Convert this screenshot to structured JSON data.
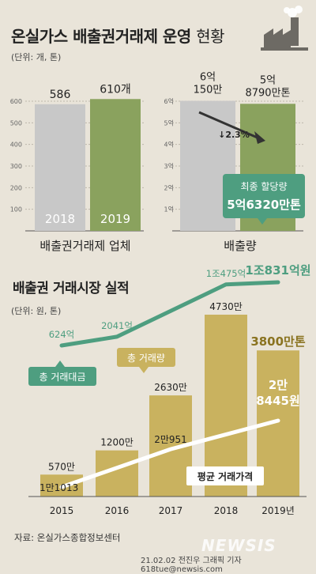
{
  "header": {
    "title_bold": "온실가스 배출권거래제 운영",
    "title_light": "현황",
    "unit1": "(단위: 개, 톤)",
    "section2_title": "배출권 거래시장 실적",
    "unit2": "(단위: 원, 톤)",
    "source": "자료: 온실가스종합정보센터",
    "credit": "21.02.02 전진우 그래픽 기자 618tue@newsis.com",
    "watermark": "NEWSIS"
  },
  "colors": {
    "gray_bar": "#c8c8c8",
    "olive_bar": "#8aa25e",
    "gold_bar": "#c9b25f",
    "teal": "#4e9e80",
    "white_line": "#ffffff",
    "red_arrow": "#d43b2a",
    "dark_arrow": "#333333"
  },
  "chart_data": [
    {
      "type": "bar",
      "categories": [
        "2018",
        "2019"
      ],
      "values": [
        586,
        610
      ],
      "value_labels": [
        "586",
        "610개"
      ],
      "xlabel": "배출권거래제 업체",
      "ylim": [
        0,
        600
      ],
      "yticks": [
        100,
        200,
        300,
        400,
        500,
        600
      ]
    },
    {
      "type": "bar",
      "categories": [
        "2018",
        "2019"
      ],
      "values": [
        6.015,
        5.879
      ],
      "value_labels": [
        "6억\n150만",
        "5억\n8790만톤"
      ],
      "xlabel": "배출량",
      "ylim": [
        0,
        6
      ],
      "yticks": [
        1,
        2,
        3,
        4,
        5,
        6
      ],
      "ytick_labels": [
        "1억",
        "2억",
        "3억",
        "4억",
        "5억",
        "6억"
      ],
      "change_label": "↓2.3%",
      "callout": {
        "title": "최종 할당량",
        "value": "5억6320만톤"
      }
    },
    {
      "type": "bar",
      "categories": [
        "2015",
        "2016",
        "2017",
        "2018",
        "2019년"
      ],
      "series": [
        {
          "name": "총 거래량",
          "values": [
            5.7,
            12.0,
            26.3,
            47.3,
            38.0
          ],
          "value_labels": [
            "570만",
            "1200만",
            "2630만",
            "4730만",
            "3800만톤"
          ]
        },
        {
          "name": "총 거래대금",
          "type": "line",
          "values": [
            624,
            2041,
            null,
            10475,
            10831
          ],
          "value_labels": [
            "624억",
            "2041억",
            "",
            "1조475억",
            "1조831억원"
          ]
        },
        {
          "name": "평균 거래가격",
          "type": "line",
          "values": [
            11013,
            null,
            20951,
            null,
            28445
          ],
          "value_labels": [
            "1만1013",
            "",
            "2만951",
            "",
            "2만\n8445원"
          ]
        }
      ]
    }
  ]
}
